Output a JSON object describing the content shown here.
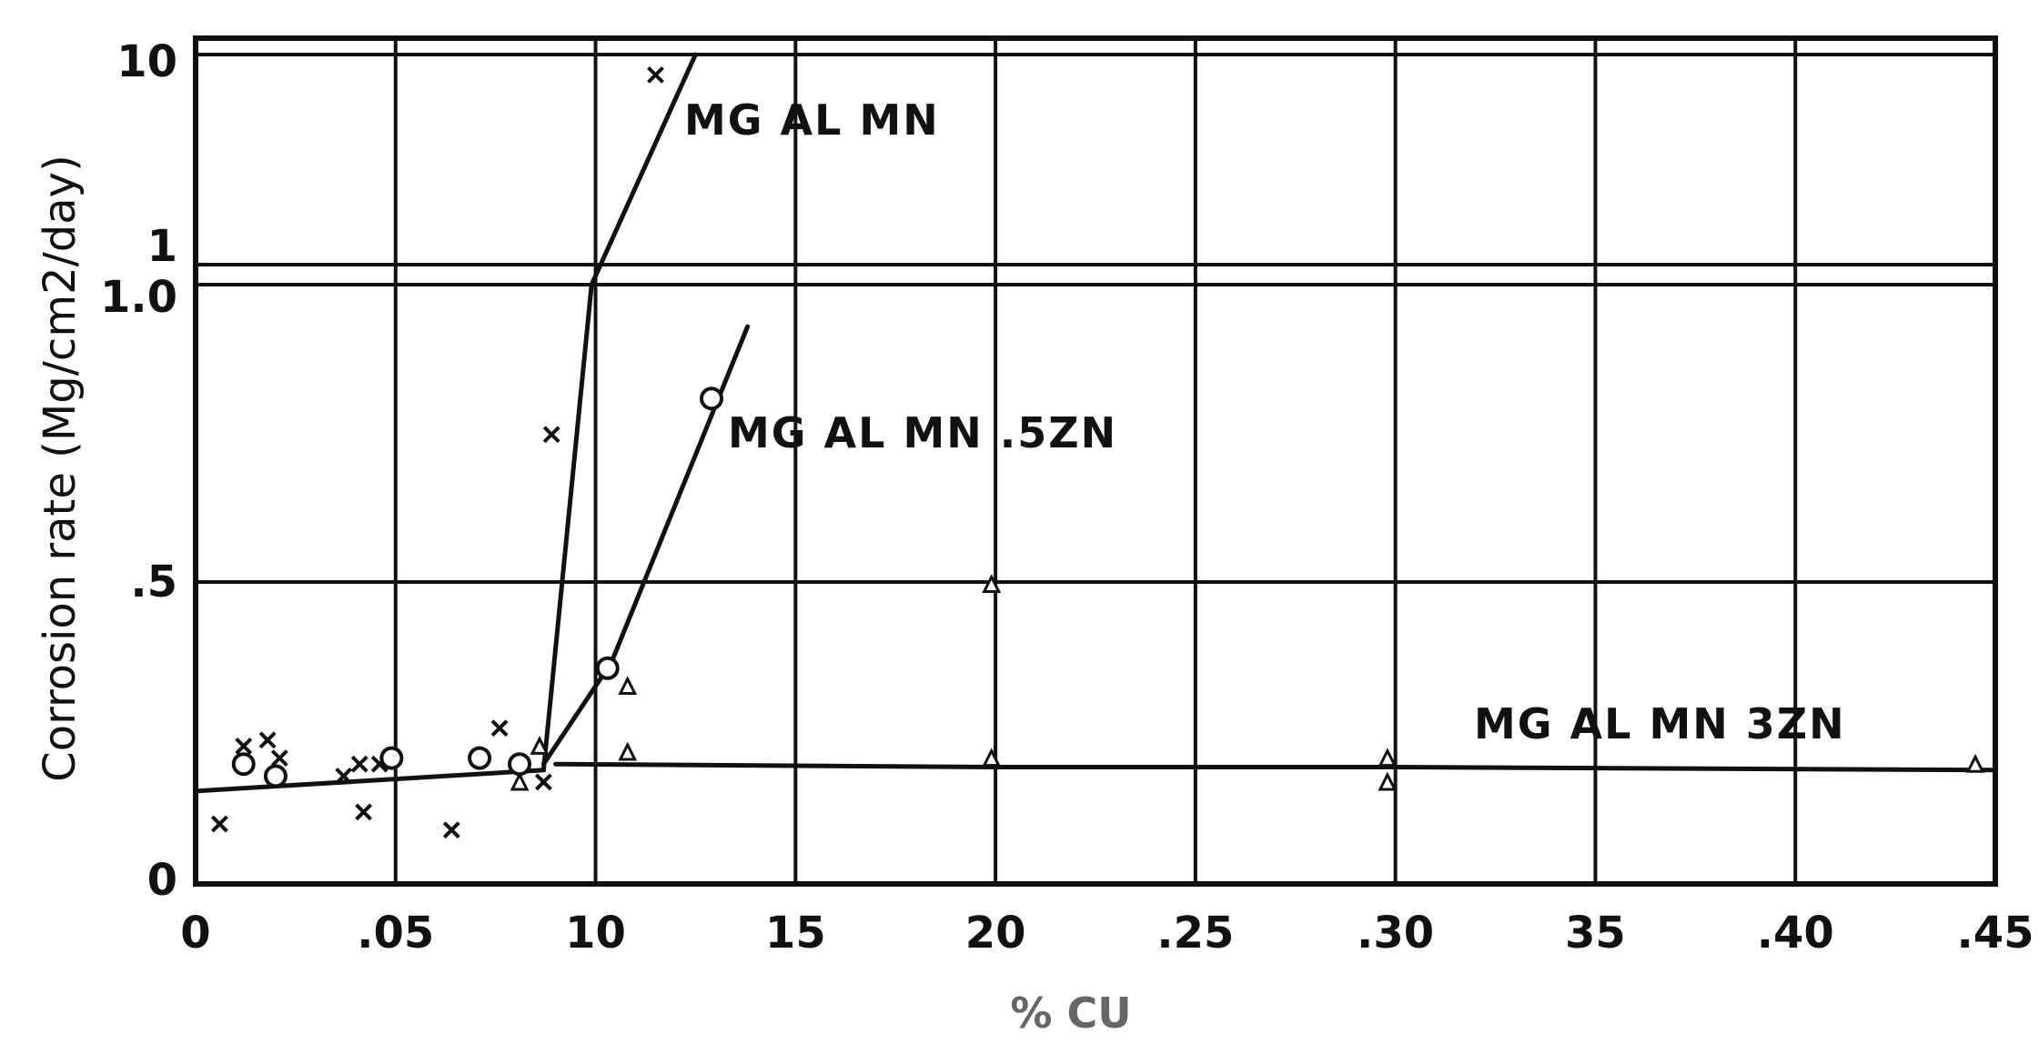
{
  "chart_data": {
    "type": "line",
    "xlabel": "% CU",
    "ylabel": "Corrosion rate (Mg/cm2/day)",
    "x_ticks": [
      "0",
      ".05",
      "10",
      "15",
      "20",
      ".25",
      ".30",
      "35",
      ".40",
      ".45"
    ],
    "y_ticks_lower": [
      "0",
      ".5",
      "1.0"
    ],
    "y_ticks_upper": [
      "1",
      "10"
    ],
    "xlim": [
      0,
      0.45
    ],
    "ylim_linear": [
      0,
      1.0
    ],
    "ylim_upper_log": [
      1,
      10
    ],
    "grid": true,
    "series": [
      {
        "name": "MG AL MN",
        "marker": "x",
        "points": [
          [
            0.006,
            0.1
          ],
          [
            0.012,
            0.23
          ],
          [
            0.018,
            0.24
          ],
          [
            0.021,
            0.21
          ],
          [
            0.037,
            0.18
          ],
          [
            0.041,
            0.2
          ],
          [
            0.042,
            0.12
          ],
          [
            0.046,
            0.2
          ],
          [
            0.064,
            0.09
          ],
          [
            0.076,
            0.26
          ],
          [
            0.087,
            0.17
          ],
          [
            0.089,
            0.75
          ],
          [
            0.115,
            8.0
          ]
        ],
        "line": [
          [
            0.0,
            0.155
          ],
          [
            0.087,
            0.19
          ],
          [
            0.099,
            1.0
          ],
          [
            0.125,
            10.0
          ]
        ]
      },
      {
        "name": "MG AL MN .5ZN",
        "marker": "o",
        "points": [
          [
            0.012,
            0.2
          ],
          [
            0.02,
            0.18
          ],
          [
            0.049,
            0.21
          ],
          [
            0.071,
            0.21
          ],
          [
            0.081,
            0.2
          ],
          [
            0.103,
            0.36
          ],
          [
            0.129,
            0.81
          ]
        ],
        "line": [
          [
            0.087,
            0.2
          ],
          [
            0.104,
            0.37
          ],
          [
            0.138,
            0.93
          ]
        ]
      },
      {
        "name": "MG AL MN 3ZN",
        "marker": "triangle",
        "points": [
          [
            0.081,
            0.17
          ],
          [
            0.086,
            0.23
          ],
          [
            0.108,
            0.33
          ],
          [
            0.108,
            0.22
          ],
          [
            0.199,
            0.5
          ],
          [
            0.199,
            0.21
          ],
          [
            0.298,
            0.21
          ],
          [
            0.298,
            0.17
          ],
          [
            0.445,
            0.2
          ]
        ],
        "line": [
          [
            0.09,
            0.2
          ],
          [
            0.2,
            0.195
          ],
          [
            0.3,
            0.195
          ],
          [
            0.45,
            0.19
          ]
        ]
      }
    ]
  }
}
